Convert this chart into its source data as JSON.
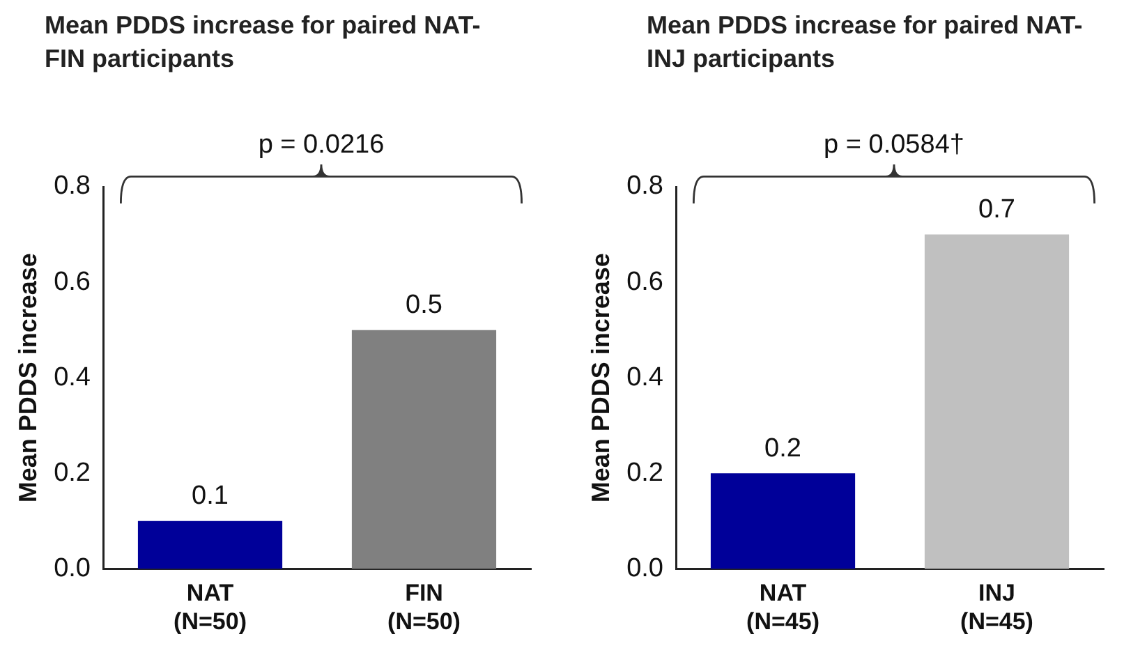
{
  "chart_data": [
    {
      "type": "bar",
      "title": "Mean PDDS increase for paired NAT-FIN participants",
      "ylabel": "Mean PDDS increase",
      "categories": [
        "NAT\n(N=50)",
        "FIN\n(N=50)"
      ],
      "values": [
        0.1,
        0.5
      ],
      "colors": [
        "#000099",
        "#808080"
      ],
      "ylim": [
        0,
        0.8
      ],
      "yticks": [
        {
          "value": 0,
          "label": "0.0"
        },
        0.2,
        0.4,
        0.6,
        0.8
      ],
      "data_labels": true,
      "grid": false,
      "legend": false,
      "annotations": [
        "p = 0.0216"
      ]
    },
    {
      "type": "bar",
      "title": "Mean PDDS increase for paired NAT-INJ participants",
      "ylabel": "Mean PDDS increase",
      "categories": [
        "NAT\n(N=45)",
        "INJ\n(N=45)"
      ],
      "values": [
        0.2,
        0.7
      ],
      "colors": [
        "#000099",
        "#c0c0c0"
      ],
      "ylim": [
        0,
        0.8
      ],
      "yticks": [
        {
          "value": 0,
          "label": "0.0"
        },
        0.2,
        0.4,
        0.6,
        0.8
      ],
      "data_labels": true,
      "grid": false,
      "legend": false,
      "annotations": [
        "p = 0.0584†"
      ]
    }
  ]
}
